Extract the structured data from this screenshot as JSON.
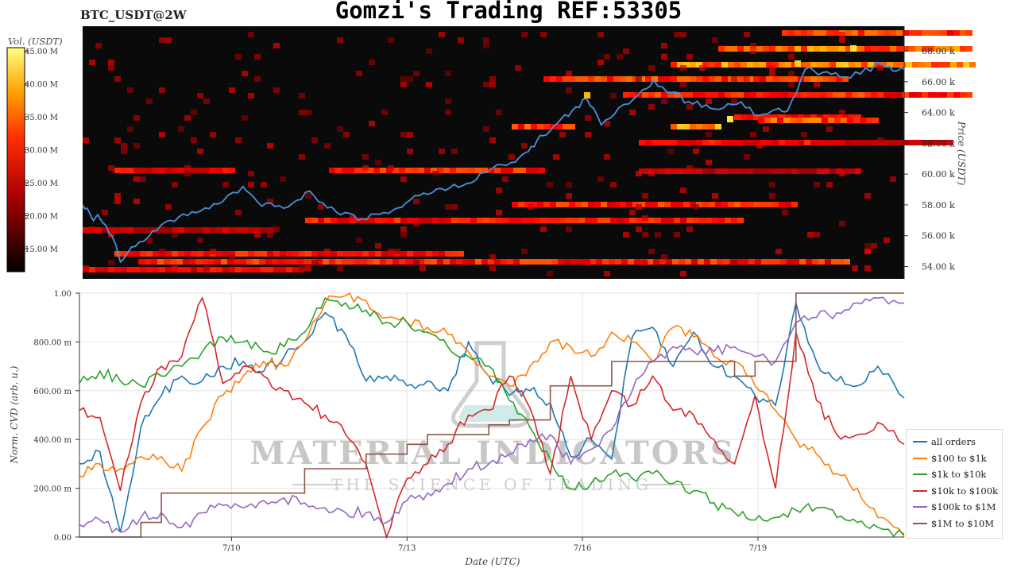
{
  "header": {
    "title": "Gomzi's Trading REF:53305",
    "ticker": "BTC_USDT@2W"
  },
  "watermark": {
    "brand": "MATERIAL INDICATORS",
    "tagline": "THE SCIENCE OF TRADING"
  },
  "colors": {
    "price_line": "#4a90d9",
    "heatmap_background": "#0a0a0a",
    "series": [
      "#1f77b4",
      "#ff7f0e",
      "#2ca02c",
      "#d62728",
      "#9467bd",
      "#8c564b"
    ]
  },
  "chart_data": [
    {
      "type": "heatmap",
      "name": "orderbook-liquidity",
      "ylabel": "Price (USDT)",
      "y_ticks": [
        "54.00 k",
        "56.00 k",
        "58.00 k",
        "60.00 k",
        "62.00 k",
        "64.00 k",
        "66.00 k",
        "68.00 k"
      ],
      "y_tick_values": [
        54000,
        56000,
        58000,
        60000,
        62000,
        64000,
        66000,
        68000
      ],
      "ylim": [
        53200,
        69600
      ],
      "colorbar": {
        "label": "Vol. (USDT)",
        "ticks": [
          "15.00 M",
          "20.00 M",
          "25.00 M",
          "30.00 M",
          "35.00 M",
          "40.00 M",
          "45.00 M"
        ],
        "tick_values": [
          15,
          20,
          25,
          30,
          35,
          40,
          45
        ],
        "range": [
          11.5,
          45.5
        ],
        "colormap": "hot"
      },
      "xlim": [
        7.4,
        21.5
      ],
      "price_line": {
        "x": [
          7.4,
          7.55,
          7.7,
          7.9,
          8.05,
          8.3,
          8.6,
          8.9,
          9.2,
          9.5,
          9.8,
          10.15,
          10.4,
          10.7,
          11.0,
          11.3,
          11.6,
          11.9,
          12.2,
          12.5,
          12.8,
          13.1,
          13.4,
          13.7,
          14.0,
          14.3,
          14.6,
          14.9,
          15.1,
          15.3,
          15.55,
          15.8,
          16.05,
          16.3,
          16.6,
          16.95,
          17.2,
          17.5,
          17.8,
          18.1,
          18.4,
          18.7,
          19.0,
          19.3,
          19.5,
          19.8,
          20.1,
          20.4,
          20.75,
          21.1,
          21.3,
          21.5
        ],
        "y": [
          58000,
          57200,
          57100,
          56000,
          54300,
          55300,
          56300,
          57000,
          57300,
          57800,
          58200,
          59200,
          58200,
          57900,
          58100,
          58900,
          57800,
          57500,
          57100,
          57400,
          57800,
          58600,
          58800,
          59100,
          59400,
          60100,
          60600,
          61100,
          61800,
          62500,
          63300,
          64100,
          64900,
          63200,
          64300,
          65200,
          66100,
          65300,
          64700,
          64500,
          64300,
          64700,
          63800,
          64200,
          64100,
          66800,
          66600,
          66300,
          66500,
          67200,
          66700,
          66800
        ]
      }
    },
    {
      "type": "line",
      "name": "normalized-cvd",
      "xlabel": "Date (UTC)",
      "ylabel": "Norm. CVD (arb. u.)",
      "x_ticks": [
        "7/10",
        "7/13",
        "7/16",
        "7/19"
      ],
      "x_tick_values": [
        10,
        13,
        16,
        19
      ],
      "xlim": [
        7.4,
        21.5
      ],
      "y_ticks": [
        "0.00",
        "200.00 m",
        "400.00 m",
        "600.00 m",
        "800.00 m",
        "1.00"
      ],
      "y_tick_values": [
        0,
        0.2,
        0.4,
        0.6,
        0.8,
        1.0
      ],
      "ylim": [
        0,
        1.0
      ],
      "grid": true,
      "legend_position": "bottom-right",
      "x": [
        7.4,
        7.75,
        8.1,
        8.45,
        8.8,
        9.15,
        9.5,
        9.85,
        10.2,
        10.55,
        10.9,
        11.25,
        11.6,
        11.95,
        12.3,
        12.65,
        13.0,
        13.35,
        13.7,
        14.05,
        14.4,
        14.75,
        15.1,
        15.45,
        15.8,
        16.15,
        16.5,
        16.85,
        17.2,
        17.55,
        17.9,
        18.25,
        18.6,
        18.95,
        19.3,
        19.65,
        20.0,
        20.35,
        20.7,
        21.05,
        21.5
      ],
      "series": [
        {
          "name": "all orders",
          "color": "#1f77b4",
          "values": [
            0.3,
            0.35,
            0.02,
            0.45,
            0.58,
            0.66,
            0.64,
            0.7,
            0.72,
            0.68,
            0.74,
            0.8,
            0.92,
            0.83,
            0.64,
            0.66,
            0.62,
            0.64,
            0.6,
            0.8,
            0.66,
            0.58,
            0.6,
            0.55,
            0.33,
            0.4,
            0.32,
            0.82,
            0.86,
            0.7,
            0.84,
            0.7,
            0.66,
            0.58,
            0.54,
            0.96,
            0.72,
            0.64,
            0.62,
            0.7,
            0.57
          ]
        },
        {
          "name": "$100 to $1k",
          "color": "#ff7f0e",
          "values": [
            0.25,
            0.3,
            0.28,
            0.33,
            0.33,
            0.27,
            0.45,
            0.58,
            0.66,
            0.72,
            0.7,
            0.8,
            0.96,
            0.99,
            0.97,
            0.9,
            0.88,
            0.86,
            0.83,
            0.76,
            0.66,
            0.62,
            0.7,
            0.8,
            0.78,
            0.74,
            0.84,
            0.8,
            0.72,
            0.86,
            0.82,
            0.74,
            0.72,
            0.62,
            0.52,
            0.4,
            0.34,
            0.26,
            0.2,
            0.08,
            0.0
          ]
        },
        {
          "name": "$1k to $10k",
          "color": "#2ca02c",
          "values": [
            0.63,
            0.68,
            0.64,
            0.62,
            0.66,
            0.7,
            0.76,
            0.82,
            0.8,
            0.76,
            0.78,
            0.84,
            0.98,
            0.96,
            0.93,
            0.88,
            0.88,
            0.84,
            0.78,
            0.74,
            0.7,
            0.56,
            0.45,
            0.32,
            0.2,
            0.22,
            0.26,
            0.24,
            0.26,
            0.22,
            0.19,
            0.14,
            0.1,
            0.07,
            0.08,
            0.11,
            0.12,
            0.08,
            0.06,
            0.04,
            0.01
          ]
        },
        {
          "name": "$10k to $100k",
          "color": "#d62728",
          "values": [
            0.52,
            0.49,
            0.19,
            0.55,
            0.7,
            0.74,
            0.98,
            0.63,
            0.7,
            0.66,
            0.6,
            0.55,
            0.5,
            0.42,
            0.3,
            0.0,
            0.24,
            0.3,
            0.38,
            0.5,
            0.52,
            0.66,
            0.53,
            0.26,
            0.66,
            0.4,
            0.6,
            0.54,
            0.66,
            0.52,
            0.5,
            0.4,
            0.3,
            0.58,
            0.2,
            0.84,
            0.56,
            0.42,
            0.42,
            0.47,
            0.38
          ]
        },
        {
          "name": "$100k to $1M",
          "color": "#9467bd",
          "values": [
            0.05,
            0.07,
            0.02,
            0.08,
            0.1,
            0.04,
            0.1,
            0.13,
            0.12,
            0.15,
            0.16,
            0.14,
            0.12,
            0.1,
            0.1,
            0.06,
            0.15,
            0.18,
            0.22,
            0.28,
            0.3,
            0.34,
            0.4,
            0.42,
            0.3,
            0.36,
            0.44,
            0.6,
            0.72,
            0.78,
            0.76,
            0.76,
            0.78,
            0.74,
            0.72,
            0.88,
            0.9,
            0.92,
            0.96,
            0.98,
            0.96
          ]
        },
        {
          "name": "$1M to $10M",
          "color": "#8c564b",
          "values": [
            0.0,
            0.0,
            0.0,
            0.06,
            0.18,
            0.18,
            0.18,
            0.18,
            0.18,
            0.18,
            0.18,
            0.28,
            0.28,
            0.28,
            0.34,
            0.34,
            0.38,
            0.42,
            0.42,
            0.42,
            0.46,
            0.48,
            0.48,
            0.62,
            0.62,
            0.62,
            0.72,
            0.72,
            0.72,
            0.72,
            0.72,
            0.72,
            0.66,
            0.72,
            0.72,
            1.0,
            1.0,
            1.0,
            1.0,
            1.0,
            1.0
          ]
        }
      ]
    }
  ]
}
